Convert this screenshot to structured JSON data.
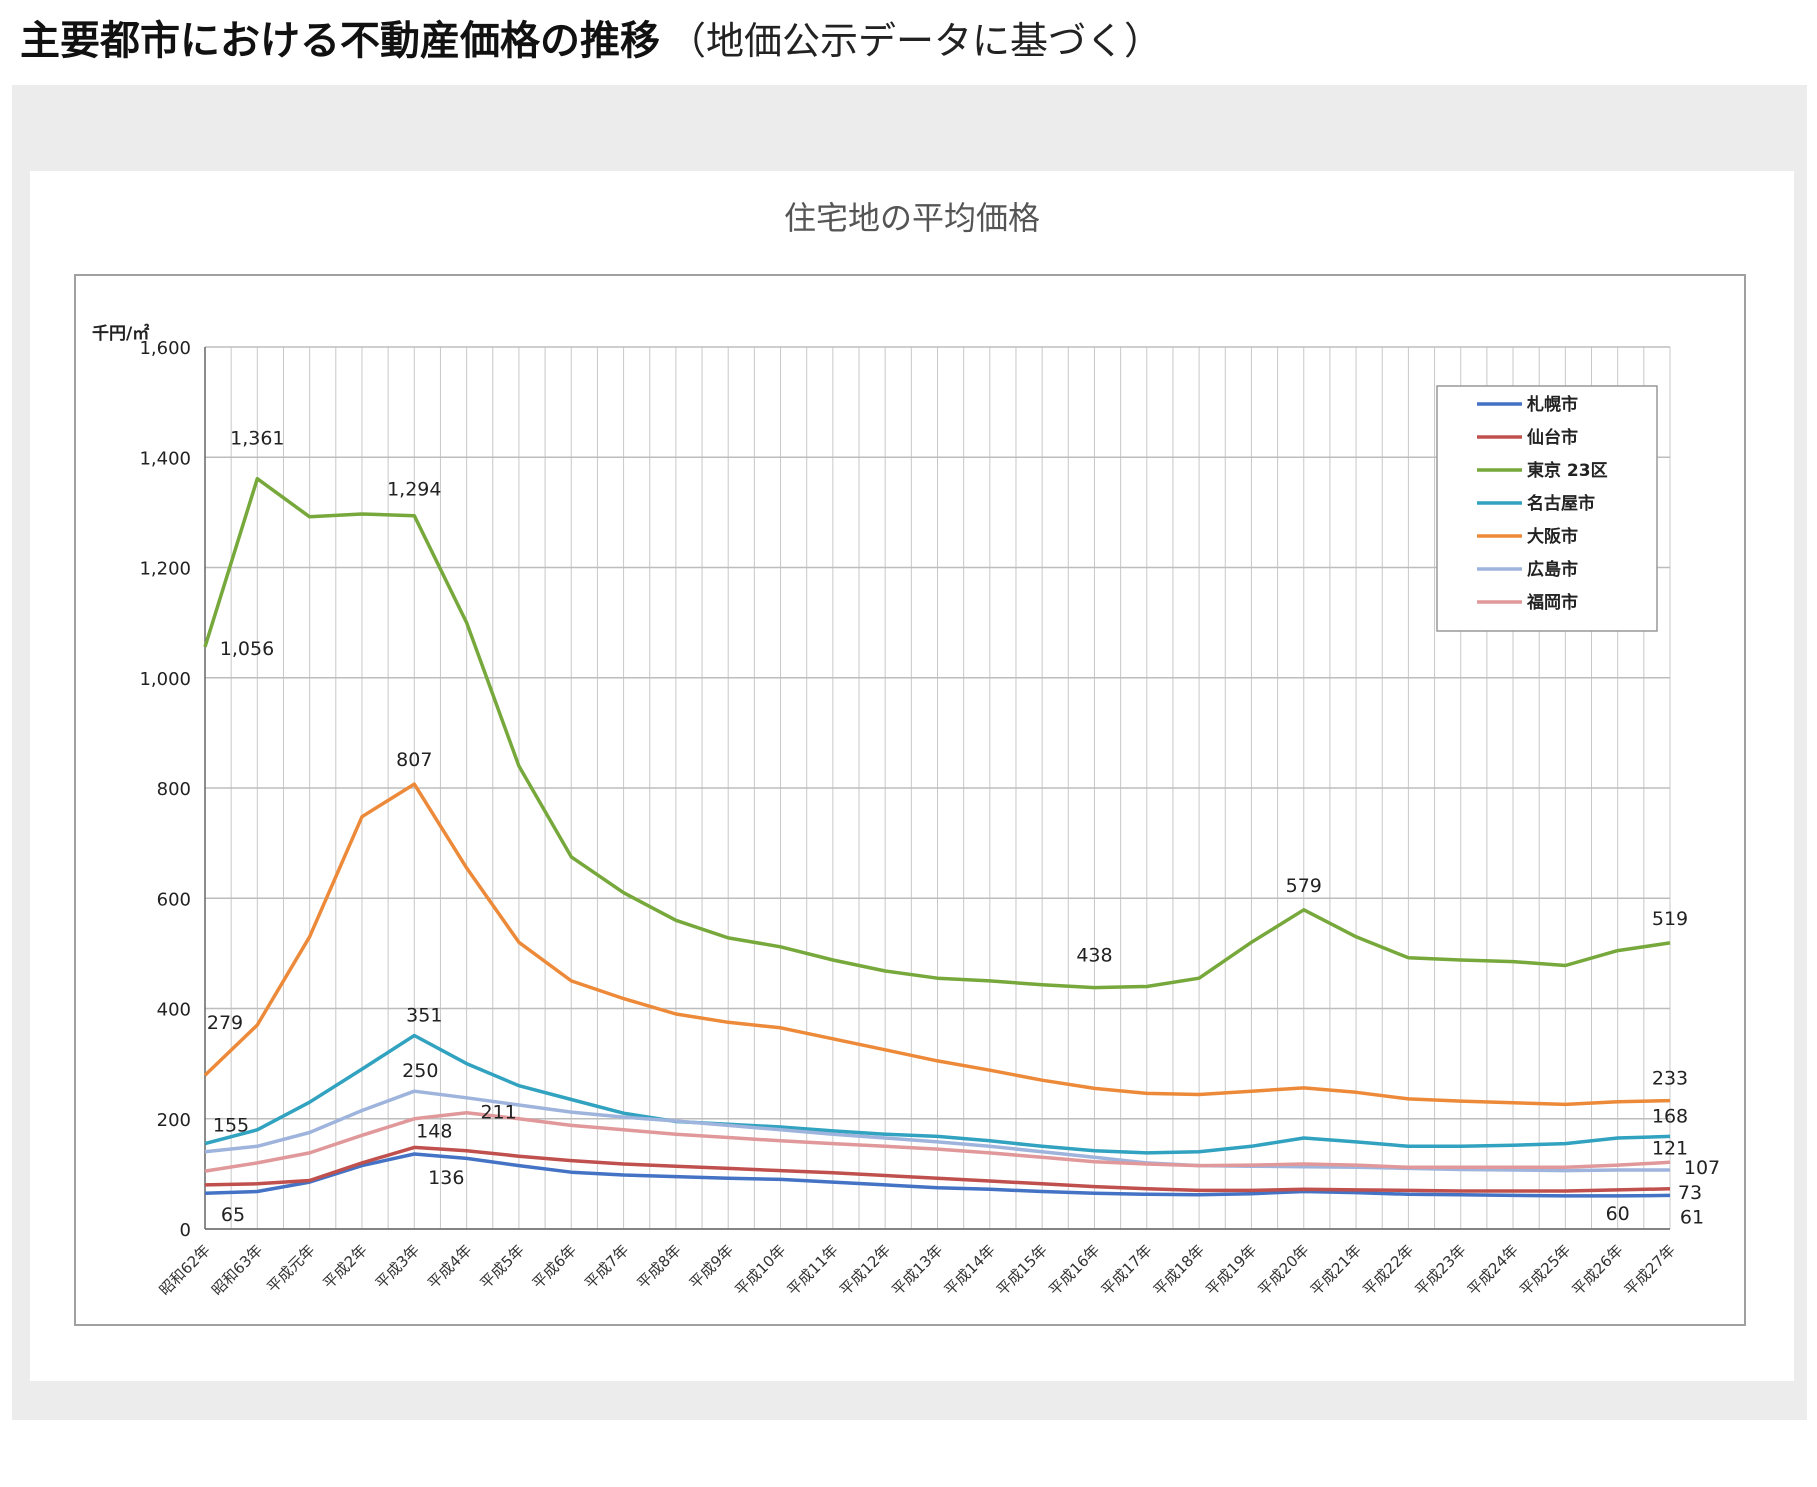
{
  "page": {
    "title": "主要都市における不動産価格の推移",
    "subtitle": "（地価公示データに基づく）"
  },
  "chart_data": {
    "type": "line",
    "title": "住宅地の平均価格",
    "ylabel": "千円/㎡",
    "xlabel": "",
    "ylim": [
      0,
      1600
    ],
    "yticks": [
      "0",
      "200",
      "400",
      "600",
      "800",
      "1,000",
      "1,200",
      "1,400",
      "1,600"
    ],
    "grid": true,
    "legend_position": "top-right",
    "categories": [
      "昭和62年",
      "昭和63年",
      "平成元年",
      "平成2年",
      "平成3年",
      "平成4年",
      "平成5年",
      "平成6年",
      "平成7年",
      "平成8年",
      "平成9年",
      "平成10年",
      "平成11年",
      "平成12年",
      "平成13年",
      "平成14年",
      "平成15年",
      "平成16年",
      "平成17年",
      "平成18年",
      "平成19年",
      "平成20年",
      "平成21年",
      "平成22年",
      "平成23年",
      "平成24年",
      "平成25年",
      "平成26年",
      "平成27年"
    ],
    "series": [
      {
        "name": "札幌市",
        "color": "#4472c4",
        "values": [
          65,
          68,
          85,
          115,
          136,
          128,
          115,
          103,
          98,
          95,
          92,
          90,
          85,
          80,
          75,
          72,
          68,
          65,
          63,
          62,
          64,
          68,
          66,
          63,
          62,
          61,
          60,
          60,
          61
        ]
      },
      {
        "name": "仙台市",
        "color": "#c0504d",
        "values": [
          80,
          82,
          88,
          120,
          148,
          142,
          132,
          124,
          118,
          114,
          110,
          106,
          102,
          97,
          92,
          87,
          82,
          77,
          73,
          70,
          70,
          72,
          71,
          70,
          69,
          69,
          69,
          71,
          73
        ]
      },
      {
        "name": "東京 23区",
        "color": "#77a83b",
        "values": [
          1056,
          1361,
          1292,
          1297,
          1294,
          1100,
          840,
          675,
          610,
          560,
          528,
          512,
          488,
          468,
          455,
          450,
          443,
          438,
          440,
          455,
          520,
          579,
          530,
          492,
          488,
          485,
          478,
          505,
          519
        ]
      },
      {
        "name": "名古屋市",
        "color": "#31a2bf",
        "values": [
          155,
          180,
          230,
          290,
          351,
          300,
          260,
          235,
          210,
          195,
          190,
          185,
          178,
          172,
          168,
          160,
          150,
          142,
          138,
          140,
          150,
          165,
          158,
          150,
          150,
          152,
          155,
          165,
          168
        ]
      },
      {
        "name": "大阪市",
        "color": "#ed8a3a",
        "values": [
          279,
          370,
          530,
          748,
          807,
          655,
          520,
          450,
          418,
          390,
          375,
          365,
          345,
          325,
          305,
          288,
          270,
          255,
          246,
          244,
          250,
          256,
          248,
          236,
          232,
          229,
          226,
          231,
          233
        ]
      },
      {
        "name": "広島市",
        "color": "#9fb4dc",
        "values": [
          140,
          150,
          175,
          215,
          250,
          238,
          225,
          212,
          203,
          196,
          188,
          180,
          172,
          165,
          158,
          150,
          140,
          130,
          120,
          115,
          114,
          113,
          112,
          110,
          108,
          107,
          106,
          107,
          107
        ]
      },
      {
        "name": "福岡市",
        "color": "#e0989a",
        "values": [
          105,
          120,
          138,
          170,
          200,
          211,
          200,
          188,
          180,
          172,
          166,
          160,
          155,
          150,
          145,
          138,
          130,
          122,
          118,
          115,
          116,
          118,
          116,
          112,
          112,
          112,
          112,
          116,
          121
        ]
      }
    ],
    "annotations": [
      {
        "series": 2,
        "index": 1,
        "text": "1,361"
      },
      {
        "series": 2,
        "index": 4,
        "text": "1,294"
      },
      {
        "series": 2,
        "index": 0,
        "text": "1,056"
      },
      {
        "series": 2,
        "index": 17,
        "text": "438"
      },
      {
        "series": 2,
        "index": 21,
        "text": "579"
      },
      {
        "series": 2,
        "index": 28,
        "text": "519"
      },
      {
        "series": 4,
        "index": 4,
        "text": "807"
      },
      {
        "series": 4,
        "index": 0,
        "text": "279"
      },
      {
        "series": 4,
        "index": 28,
        "text": "233"
      },
      {
        "series": 3,
        "index": 4,
        "text": "351"
      },
      {
        "series": 3,
        "index": 0,
        "text": "155"
      },
      {
        "series": 3,
        "index": 28,
        "text": "168"
      },
      {
        "series": 5,
        "index": 4,
        "text": "250"
      },
      {
        "series": 6,
        "index": 5,
        "text": "211"
      },
      {
        "series": 1,
        "index": 4,
        "text": "148"
      },
      {
        "series": 0,
        "index": 4,
        "text": "136"
      },
      {
        "series": 0,
        "index": 0,
        "text": "65"
      },
      {
        "series": 6,
        "index": 28,
        "text": "121"
      },
      {
        "series": 5,
        "index": 28,
        "text": "107"
      },
      {
        "series": 1,
        "index": 28,
        "text": "73"
      },
      {
        "series": 0,
        "index": 27,
        "text": "60"
      },
      {
        "series": 0,
        "index": 28,
        "text": "61"
      }
    ]
  }
}
